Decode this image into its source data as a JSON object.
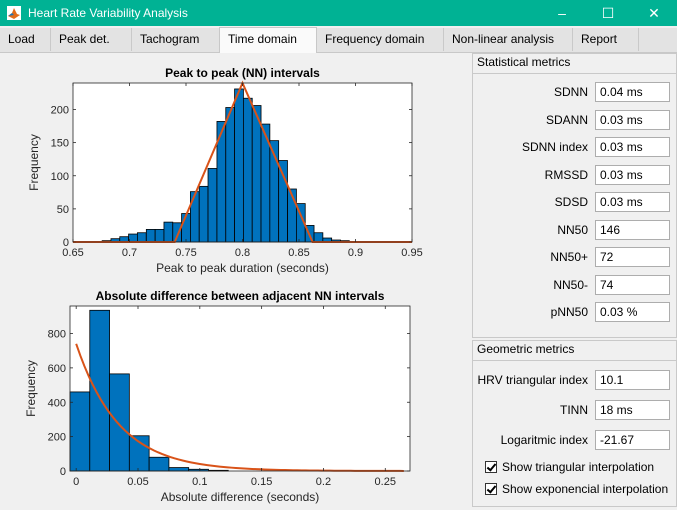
{
  "window": {
    "title": "Heart Rate Variability Analysis",
    "accent": "#00b294",
    "app_icon": "matlab-icon"
  },
  "window_buttons": [
    "–",
    "☐",
    "✕"
  ],
  "tabs": [
    {
      "label": "Load",
      "active": false
    },
    {
      "label": "Peak det.",
      "active": false
    },
    {
      "label": "Tachogram",
      "active": false
    },
    {
      "label": "Time domain",
      "active": true
    },
    {
      "label": "Frequency domain",
      "active": false
    },
    {
      "label": "Non-linear analysis",
      "active": false
    },
    {
      "label": "Report",
      "active": false
    }
  ],
  "statistical": {
    "title": "Statistical metrics",
    "metrics": [
      {
        "label": "SDNN",
        "value": "0.04 ms"
      },
      {
        "label": "SDANN",
        "value": "0.03 ms"
      },
      {
        "label": "SDNN index",
        "value": "0.03 ms"
      },
      {
        "label": "RMSSD",
        "value": "0.03 ms"
      },
      {
        "label": "SDSD",
        "value": "0.03 ms"
      },
      {
        "label": "NN50",
        "value": "146"
      },
      {
        "label": "NN50+",
        "value": "72"
      },
      {
        "label": "NN50-",
        "value": "74"
      },
      {
        "label": "pNN50",
        "value": "0.03 %"
      }
    ]
  },
  "geometric": {
    "title": "Geometric metrics",
    "metrics": [
      {
        "label": "HRV triangular index",
        "value": "10.1"
      },
      {
        "label": "TINN",
        "value": "18 ms"
      },
      {
        "label": "Logaritmic index",
        "value": "-21.67"
      }
    ],
    "checkboxes": [
      {
        "label": "Show triangular interpolation",
        "checked": true
      },
      {
        "label": "Show exponencial interpolation",
        "checked": true
      }
    ]
  },
  "chart_data": [
    {
      "type": "bar",
      "title": "Peak to peak (NN) intervals",
      "xlabel": "Peak to peak duration (seconds)",
      "ylabel": "Frequency",
      "xlim": [
        0.65,
        0.95
      ],
      "ylim": [
        0,
        240
      ],
      "xticks": [
        0.65,
        0.7,
        0.75,
        0.8,
        0.85,
        0.9,
        0.95
      ],
      "xtick_labels": [
        "0.65",
        "0.7",
        "0.75",
        "0.8",
        "0.85",
        "0.9",
        "0.95"
      ],
      "yticks": [
        0,
        50,
        100,
        150,
        200
      ],
      "bin_width": 0.0078125,
      "bar_color": "#0072bd",
      "bins": [
        {
          "x": 0.6797,
          "y": 2
        },
        {
          "x": 0.6875,
          "y": 5
        },
        {
          "x": 0.6953,
          "y": 8
        },
        {
          "x": 0.7031,
          "y": 12
        },
        {
          "x": 0.7109,
          "y": 14
        },
        {
          "x": 0.7188,
          "y": 19
        },
        {
          "x": 0.7266,
          "y": 19
        },
        {
          "x": 0.7344,
          "y": 30
        },
        {
          "x": 0.7422,
          "y": 29
        },
        {
          "x": 0.75,
          "y": 43
        },
        {
          "x": 0.7578,
          "y": 76
        },
        {
          "x": 0.7656,
          "y": 84
        },
        {
          "x": 0.7734,
          "y": 111
        },
        {
          "x": 0.7813,
          "y": 182
        },
        {
          "x": 0.7891,
          "y": 203
        },
        {
          "x": 0.7969,
          "y": 231
        },
        {
          "x": 0.8047,
          "y": 217
        },
        {
          "x": 0.8125,
          "y": 206
        },
        {
          "x": 0.8203,
          "y": 178
        },
        {
          "x": 0.8281,
          "y": 153
        },
        {
          "x": 0.8359,
          "y": 123
        },
        {
          "x": 0.8438,
          "y": 80
        },
        {
          "x": 0.8516,
          "y": 58
        },
        {
          "x": 0.8594,
          "y": 25
        },
        {
          "x": 0.8672,
          "y": 14
        },
        {
          "x": 0.875,
          "y": 6
        },
        {
          "x": 0.8828,
          "y": 3
        },
        {
          "x": 0.8906,
          "y": 2
        }
      ],
      "line_color": "#d95319",
      "triangle": [
        [
          0.65,
          0
        ],
        [
          0.74,
          0
        ],
        [
          0.8,
          240
        ],
        [
          0.862,
          0
        ],
        [
          0.95,
          0
        ]
      ]
    },
    {
      "type": "bar",
      "title": "Absolute difference between adjacent NN intervals",
      "xlabel": "Absolute difference (seconds)",
      "ylabel": "Frequency",
      "xlim": [
        -0.005,
        0.27
      ],
      "ylim": [
        0,
        960
      ],
      "xticks": [
        0,
        0.05,
        0.1,
        0.15,
        0.2,
        0.25
      ],
      "xtick_labels": [
        "0",
        "0.05",
        "0.1",
        "0.15",
        "0.2",
        "0.25"
      ],
      "yticks": [
        0,
        200,
        400,
        600,
        800
      ],
      "bin_width": 0.016,
      "bar_color": "#0072bd",
      "bins": [
        {
          "x": 0.003,
          "y": 460
        },
        {
          "x": 0.019,
          "y": 935
        },
        {
          "x": 0.035,
          "y": 565
        },
        {
          "x": 0.051,
          "y": 205
        },
        {
          "x": 0.067,
          "y": 80
        },
        {
          "x": 0.083,
          "y": 20
        },
        {
          "x": 0.099,
          "y": 10
        },
        {
          "x": 0.115,
          "y": 4
        }
      ],
      "line_color": "#d95319",
      "exp_fit": {
        "a": 740,
        "b": 0.0,
        "scale": 0.0345,
        "x_start": 0.0,
        "x_end": 0.265
      }
    }
  ]
}
